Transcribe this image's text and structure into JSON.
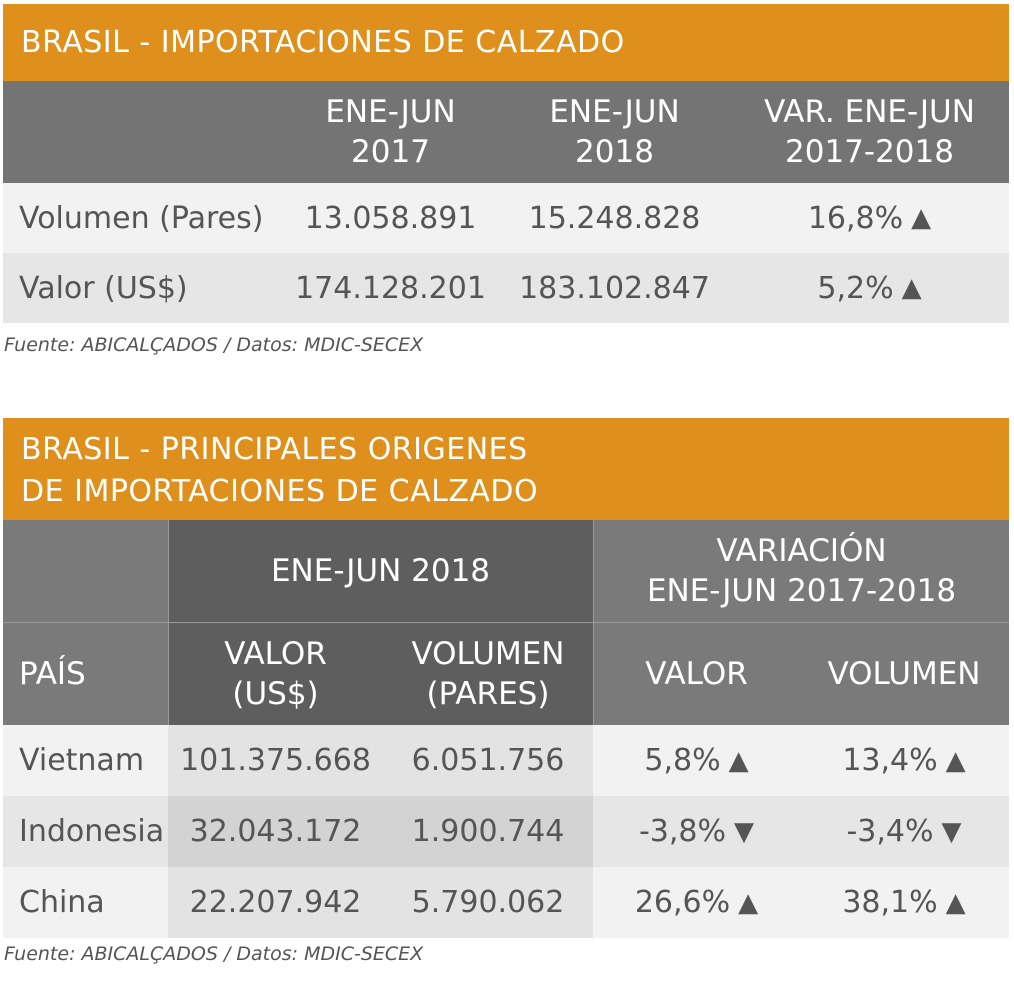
{
  "table1": {
    "title": "BRASIL - IMPORTACIONES DE CALZADO",
    "headers": [
      "",
      "ENE-JUN\n2017",
      "ENE-JUN\n2018",
      "VAR. ENE-JUN\n2017-2018"
    ],
    "rows": [
      {
        "label": "Volumen (Pares)",
        "v2017": "13.058.891",
        "v2018": "15.248.828",
        "var": "16,8%",
        "dir": "▲"
      },
      {
        "label": "Valor (US$)",
        "v2017": "174.128.201",
        "v2018": "183.102.847",
        "var": "5,2%",
        "dir": "▲"
      }
    ],
    "source": "Fuente:  ABICALÇADOS / Datos: MDIC-SECEX"
  },
  "table2": {
    "title_line1": "BRASIL - PRINCIPALES ORIGENES",
    "title_line2": "DE IMPORTACIONES DE CALZADO",
    "group_headers": {
      "period": "ENE-JUN 2018",
      "variation_line1": "VARIACIÓN",
      "variation_line2": "ENE-JUN 2017-2018"
    },
    "col_headers": {
      "pais": "PAÍS",
      "valor_line1": "VALOR",
      "valor_line2": "(US$)",
      "volumen_line1": "VOLUMEN",
      "volumen_line2": "(PARES)",
      "var_valor": "VALOR",
      "var_volumen": "VOLUMEN"
    },
    "rows": [
      {
        "pais": "Vietnam",
        "valor": "101.375.668",
        "volumen": "6.051.756",
        "var_valor": "5,8%",
        "var_valor_dir": "▲",
        "var_volumen": "13,4%",
        "var_volumen_dir": "▲"
      },
      {
        "pais": "Indonesia",
        "valor": "32.043.172",
        "volumen": "1.900.744",
        "var_valor": "-3,8%",
        "var_valor_dir": "▼",
        "var_volumen": "-3,4%",
        "var_volumen_dir": "▼"
      },
      {
        "pais": "China",
        "valor": "22.207.942",
        "volumen": "5.790.062",
        "var_valor": "26,6%",
        "var_valor_dir": "▲",
        "var_volumen": "38,1%",
        "var_volumen_dir": "▲"
      }
    ],
    "source": "Fuente:  ABICALÇADOS / Datos: MDIC-SECEX"
  },
  "colors": {
    "orange": "#df901c",
    "header_gray": "#747474",
    "header_dark": "#5e5e5e",
    "row_light": "#f2f2f2",
    "row_mid": "#e6e6e6",
    "cell_dark": "#d3d3d3"
  }
}
